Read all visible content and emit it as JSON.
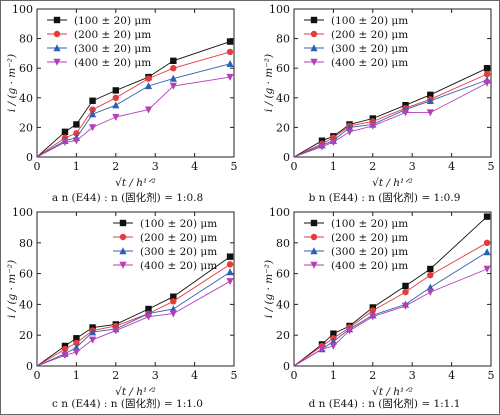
{
  "figure": {
    "series_styles": [
      {
        "name": "(100 ± 20) μm",
        "color": "#111111",
        "marker": "square"
      },
      {
        "name": "(200 ± 20) μm",
        "color": "#e53b3b",
        "marker": "circle"
      },
      {
        "name": "(300 ± 20) μm",
        "color": "#2f5fb3",
        "marker": "triangle-up"
      },
      {
        "name": "(400 ± 20) μm",
        "color": "#b43fb6",
        "marker": "triangle-down"
      }
    ],
    "ylabel": "i / (g · m⁻²)",
    "xlabel": "√t / h¹ᐟ²"
  },
  "chart_data": [
    {
      "panel": "a",
      "type": "line",
      "caption_letter": "a",
      "caption_text": "n (E44) : n (固化剂) = 1:0.8",
      "xlabel": "√t / h¹ᐟ²",
      "ylabel": "i / (g · m⁻²)",
      "xlim": [
        0,
        5
      ],
      "ylim": [
        0,
        100
      ],
      "xticks": [
        0,
        1,
        2,
        3,
        4,
        5
      ],
      "yticks": [
        0,
        20,
        40,
        60,
        80,
        100
      ],
      "legend_position": "top-left",
      "x": [
        0,
        0.71,
        1.0,
        1.41,
        2.0,
        2.83,
        3.46,
        4.9
      ],
      "series": [
        {
          "name": "(100 ± 20) μm",
          "values": [
            0,
            17,
            22,
            38,
            45,
            54,
            65,
            78
          ]
        },
        {
          "name": "(200 ± 20) μm",
          "values": [
            0,
            13,
            16,
            32,
            40,
            53,
            60,
            71
          ]
        },
        {
          "name": "(300 ± 20) μm",
          "values": [
            0,
            11,
            13,
            29,
            35,
            48,
            53,
            63
          ]
        },
        {
          "name": "(400 ± 20) μm",
          "values": [
            0,
            10,
            11,
            20,
            27,
            32,
            48,
            54
          ]
        }
      ]
    },
    {
      "panel": "b",
      "type": "line",
      "caption_letter": "b",
      "caption_text": "n (E44) : n (固化剂) = 1:0.9",
      "xlabel": "√t / h¹ᐟ²",
      "ylabel": "i / (g · m⁻²)",
      "xlim": [
        0,
        5
      ],
      "ylim": [
        0,
        100
      ],
      "xticks": [
        0,
        1,
        2,
        3,
        4,
        5
      ],
      "yticks": [
        0,
        20,
        40,
        60,
        80,
        100
      ],
      "legend_position": "top-left",
      "x": [
        0,
        0.71,
        1.0,
        1.41,
        2.0,
        2.83,
        3.46,
        4.9
      ],
      "series": [
        {
          "name": "(100 ± 20) μm",
          "values": [
            0,
            11,
            14,
            22,
            26,
            35,
            42,
            60
          ]
        },
        {
          "name": "(200 ± 20) μm",
          "values": [
            0,
            9,
            13,
            21,
            24,
            33,
            39,
            56
          ]
        },
        {
          "name": "(300 ± 20) μm",
          "values": [
            0,
            8,
            11,
            20,
            22,
            32,
            38,
            52
          ]
        },
        {
          "name": "(400 ± 20) μm",
          "values": [
            0,
            7,
            10,
            17,
            21,
            30,
            30,
            50
          ]
        }
      ]
    },
    {
      "panel": "c",
      "type": "line",
      "caption_letter": "c",
      "caption_text": "n (E44) : n (固化剂) = 1:1.0",
      "xlabel": "√t / h¹ᐟ²",
      "ylabel": "i / (g · m⁻²)",
      "xlim": [
        0,
        5
      ],
      "ylim": [
        0,
        100
      ],
      "xticks": [
        0,
        1,
        2,
        3,
        4,
        5
      ],
      "yticks": [
        0,
        20,
        40,
        60,
        80,
        100
      ],
      "legend_position": "top-right",
      "x": [
        0,
        0.71,
        1.0,
        1.41,
        2.0,
        2.83,
        3.46,
        4.9
      ],
      "series": [
        {
          "name": "(100 ± 20) μm",
          "values": [
            0,
            13,
            18,
            25,
            27,
            37,
            45,
            71
          ]
        },
        {
          "name": "(200 ± 20) μm",
          "values": [
            0,
            11,
            15,
            23,
            26,
            34,
            42,
            66
          ]
        },
        {
          "name": "(300 ± 20) μm",
          "values": [
            0,
            8,
            12,
            22,
            24,
            34,
            37,
            61
          ]
        },
        {
          "name": "(400 ± 20) μm",
          "values": [
            0,
            7,
            9,
            17,
            23,
            32,
            34,
            55
          ]
        }
      ]
    },
    {
      "panel": "d",
      "type": "line",
      "caption_letter": "d",
      "caption_text": "n (E44) : n (固化剂) = 1:1.1",
      "xlabel": "√t / h¹ᐟ²",
      "ylabel": "i / (g · m⁻²)",
      "xlim": [
        0,
        5
      ],
      "ylim": [
        0,
        100
      ],
      "xticks": [
        0,
        1,
        2,
        3,
        4,
        5
      ],
      "yticks": [
        0,
        20,
        40,
        60,
        80,
        100
      ],
      "legend_position": "top-left",
      "x": [
        0,
        0.71,
        1.0,
        1.41,
        2.0,
        2.83,
        3.46,
        4.9
      ],
      "series": [
        {
          "name": "(100 ± 20) μm",
          "values": [
            0,
            14,
            21,
            26,
            38,
            52,
            63,
            97
          ]
        },
        {
          "name": "(200 ± 20) μm",
          "values": [
            0,
            13,
            18,
            25,
            36,
            48,
            59,
            80
          ]
        },
        {
          "name": "(300 ± 20) μm",
          "values": [
            0,
            11,
            16,
            24,
            33,
            40,
            51,
            74
          ]
        },
        {
          "name": "(400 ± 20) μm",
          "values": [
            0,
            11,
            13,
            23,
            32,
            39,
            48,
            63
          ]
        }
      ]
    }
  ]
}
